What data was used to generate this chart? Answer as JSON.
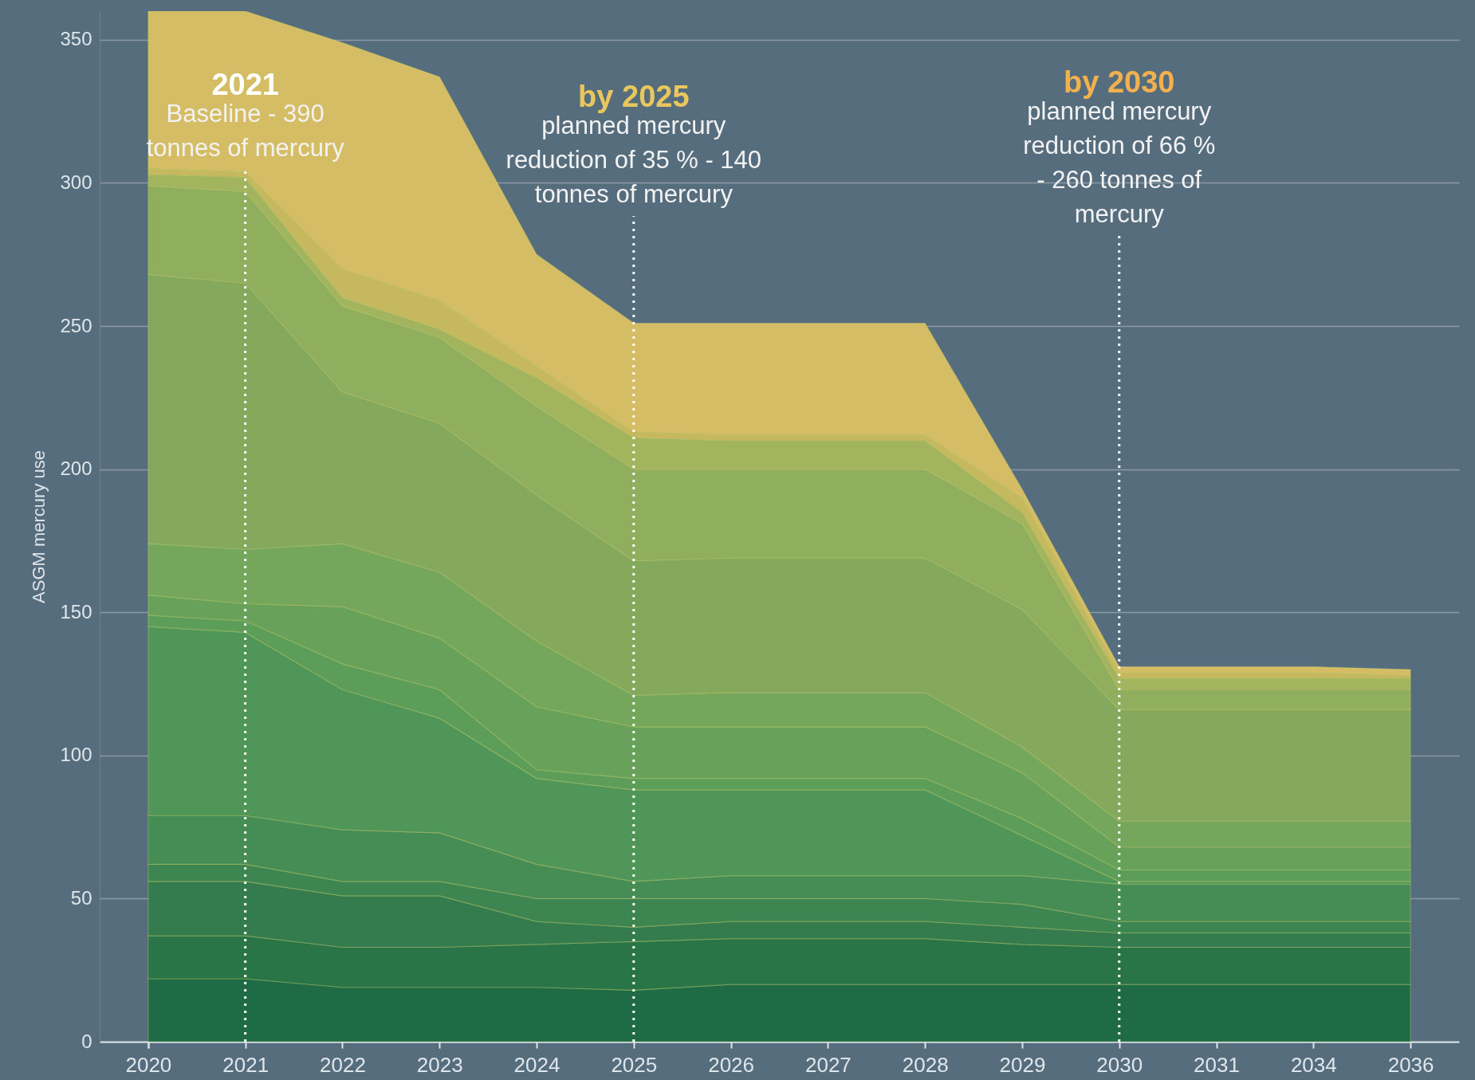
{
  "chart_data": {
    "type": "area",
    "stacked": true,
    "ylabel": "ASGM mercury use",
    "categories": [
      "2020",
      "2021",
      "2022",
      "2023",
      "2024",
      "2025",
      "2026",
      "2027",
      "2028",
      "2029",
      "2030",
      "2031",
      "2034",
      "2036"
    ],
    "ylim": [
      0,
      360
    ],
    "yticks": [
      0,
      50,
      100,
      150,
      200,
      250,
      300,
      350
    ],
    "grid": "y",
    "series": [
      {
        "color": "#1e6b45",
        "values": [
          22,
          22,
          19,
          19,
          19,
          18,
          20,
          20,
          20,
          20,
          20,
          20,
          20,
          20
        ]
      },
      {
        "color": "#2a7548",
        "values": [
          15,
          15,
          14,
          14,
          15,
          17,
          16,
          16,
          16,
          14,
          13,
          13,
          13,
          13
        ]
      },
      {
        "color": "#347c4d",
        "values": [
          19,
          19,
          18,
          18,
          8,
          5,
          6,
          6,
          6,
          6,
          5,
          5,
          5,
          5
        ]
      },
      {
        "color": "#3d8551",
        "values": [
          6,
          6,
          5,
          5,
          8,
          10,
          8,
          8,
          8,
          8,
          4,
          4,
          4,
          4
        ]
      },
      {
        "color": "#468c55",
        "values": [
          17,
          17,
          18,
          17,
          12,
          6,
          8,
          8,
          8,
          10,
          13,
          13,
          13,
          13
        ]
      },
      {
        "color": "#509659",
        "values": [
          66,
          64,
          49,
          40,
          30,
          32,
          30,
          30,
          30,
          14,
          1,
          1,
          1,
          1
        ]
      },
      {
        "color": "#5c9d5a",
        "values": [
          4,
          4,
          9,
          10,
          3,
          4,
          4,
          4,
          4,
          6,
          4,
          4,
          4,
          4
        ]
      },
      {
        "color": "#68a25a",
        "values": [
          7,
          6,
          20,
          18,
          22,
          18,
          18,
          18,
          18,
          16,
          8,
          8,
          8,
          8
        ]
      },
      {
        "color": "#74a65b",
        "values": [
          18,
          19,
          22,
          23,
          23,
          11,
          12,
          12,
          12,
          9,
          9,
          9,
          9,
          9
        ]
      },
      {
        "color": "#84a85c",
        "values": [
          94,
          93,
          53,
          52,
          51,
          47,
          47,
          47,
          47,
          48,
          39,
          39,
          39,
          39
        ]
      },
      {
        "color": "#8fae5e",
        "values": [
          31,
          32,
          30,
          30,
          31,
          32,
          31,
          31,
          31,
          30,
          7,
          7,
          7,
          7
        ]
      },
      {
        "color": "#a3b45e",
        "values": [
          4,
          5,
          3,
          3,
          10,
          11,
          10,
          10,
          10,
          4,
          4,
          4,
          4,
          4
        ]
      },
      {
        "color": "#c5b85f",
        "values": [
          2,
          2,
          10,
          10,
          4,
          2,
          2,
          2,
          2,
          5,
          2,
          2,
          2,
          1
        ]
      },
      {
        "color": "#d5bd65",
        "values": [
          55,
          56,
          79,
          78,
          39,
          38,
          39,
          39,
          39,
          3,
          2,
          2,
          2,
          2
        ]
      }
    ],
    "ref_lines": [
      {
        "axis": "x",
        "value": "2021",
        "label": "2021 Baseline - 390 tonnes of mercury",
        "color": "#ffffff",
        "line_style": "dotted"
      },
      {
        "axis": "x",
        "value": "2025",
        "label": "by 2025 planned mercury reduction of 35 % - 140 tonnes of mercury",
        "color": "#ffffff",
        "line_style": "dotted"
      },
      {
        "axis": "x",
        "value": "2030",
        "label": "by 2030 planned mercury reduction of 66 % - 260 tonnes of mercury",
        "color": "#ffffff",
        "line_style": "dotted"
      }
    ]
  }
}
